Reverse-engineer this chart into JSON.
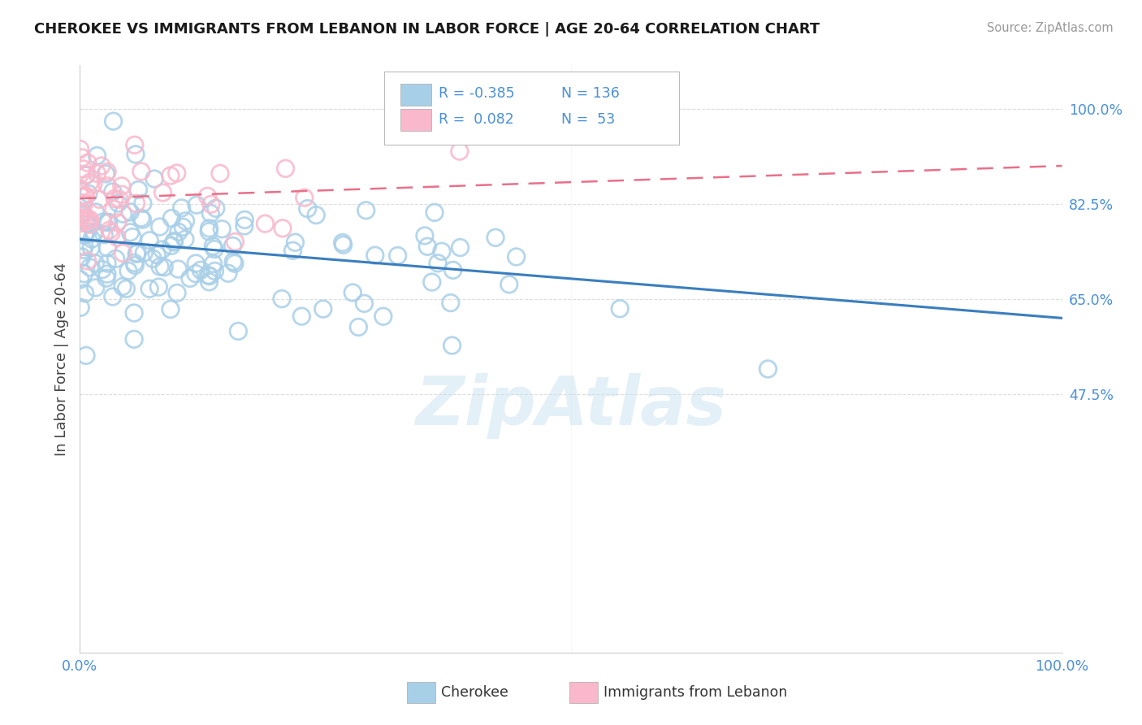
{
  "title": "CHEROKEE VS IMMIGRANTS FROM LEBANON IN LABOR FORCE | AGE 20-64 CORRELATION CHART",
  "source": "Source: ZipAtlas.com",
  "ylabel": "In Labor Force | Age 20-64",
  "xlim": [
    0.0,
    1.0
  ],
  "ylim": [
    0.0,
    1.08
  ],
  "yticks": [
    0.475,
    0.65,
    0.825,
    1.0
  ],
  "ytick_labels": [
    "47.5%",
    "65.0%",
    "82.5%",
    "100.0%"
  ],
  "xticks": [
    0.0,
    0.5,
    1.0
  ],
  "xtick_labels": [
    "0.0%",
    "",
    "100.0%"
  ],
  "blue_color": "#a8cfe8",
  "pink_color": "#f9b8cb",
  "blue_edge": "#a8cfe8",
  "pink_edge": "#f9b8cb",
  "line_blue": "#3a7ebf",
  "line_pink": "#e8708a",
  "text_color": "#4a90d9",
  "background": "#ffffff",
  "grid_color": "#dddddd",
  "watermark": "ZipAtlas",
  "blue_trend_x0": 0.0,
  "blue_trend_x1": 1.0,
  "blue_trend_y0": 0.76,
  "blue_trend_y1": 0.615,
  "pink_trend_x0": 0.0,
  "pink_trend_x1": 1.0,
  "pink_trend_y0": 0.835,
  "pink_trend_y1": 0.895
}
